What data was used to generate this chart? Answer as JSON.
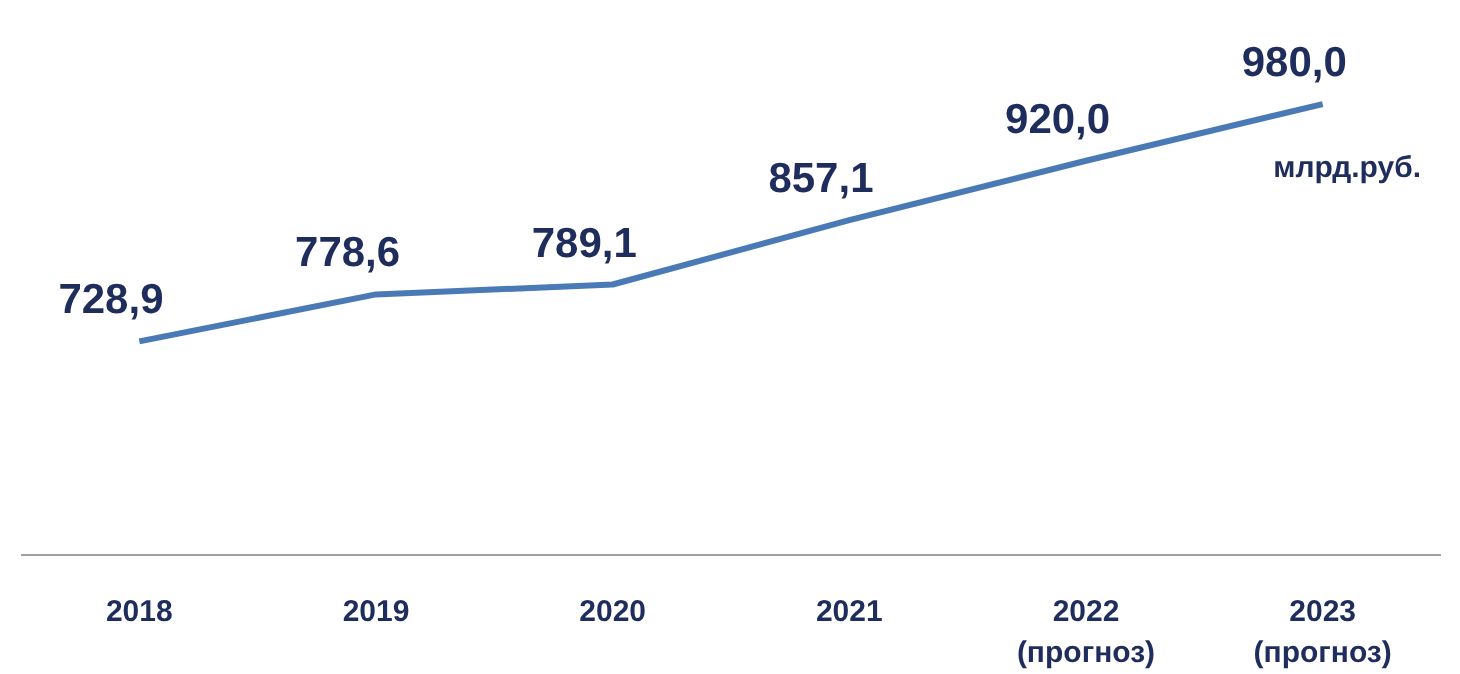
{
  "chart_data": {
    "type": "line",
    "categories": [
      "2018",
      "2019",
      "2020",
      "2021",
      "2022\n(прогноз)",
      "2023\n(прогноз)"
    ],
    "series": [
      {
        "color": "#4a7ab5",
        "values": [
          728.9,
          778.6,
          789.1,
          857.1,
          920.0,
          980.0
        ],
        "value_labels": [
          "728,9",
          "778,6",
          "789,1",
          "857,1",
          "920,0",
          "980,0"
        ]
      }
    ],
    "annotations": [
      "млрд.руб."
    ],
    "grid": false,
    "marker": "none",
    "line_style": "solid"
  }
}
